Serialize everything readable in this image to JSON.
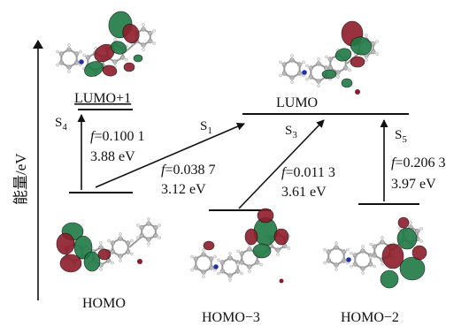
{
  "axis": {
    "label": "能量/eV"
  },
  "orbitals": {
    "homo": "HOMO",
    "homo3": "HOMO−3",
    "homo2": "HOMO−2",
    "lumo": "LUMO",
    "lumo1": "LUMO+1"
  },
  "states": {
    "s1": "S",
    "s1_sub": "1",
    "s3": "S",
    "s3_sub": "3",
    "s4": "S",
    "s4_sub": "4",
    "s5": "S",
    "s5_sub": "5"
  },
  "transitions": {
    "s4": {
      "f": "=0.100 1",
      "energy": "3.88 eV"
    },
    "s1": {
      "f": "=0.038 7",
      "energy": "3.12 eV"
    },
    "s3": {
      "f": "=0.011 3",
      "energy": "3.61 eV"
    },
    "s5": {
      "f": "=0.206 3",
      "energy": "3.97 eV"
    }
  },
  "symbols": {
    "f": "f"
  },
  "colors": {
    "orbital_green": "#1f7a45",
    "orbital_red": "#8c1c2a",
    "atom_grey": "#b5b5b5",
    "nitrogen": "#2233aa"
  }
}
